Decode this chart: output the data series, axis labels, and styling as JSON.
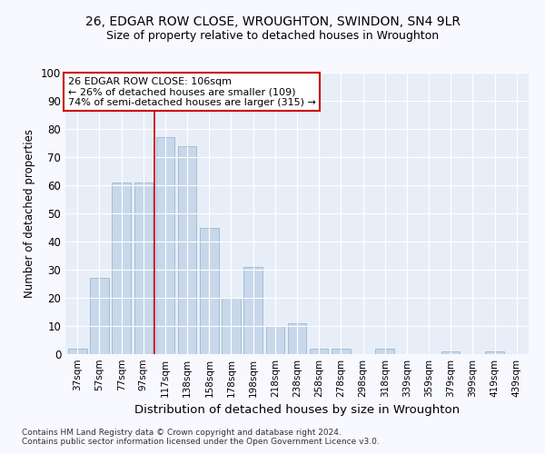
{
  "title": "26, EDGAR ROW CLOSE, WROUGHTON, SWINDON, SN4 9LR",
  "subtitle": "Size of property relative to detached houses in Wroughton",
  "xlabel": "Distribution of detached houses by size in Wroughton",
  "ylabel": "Number of detached properties",
  "bar_color": "#c8d8ea",
  "bar_edge_color": "#98b8d0",
  "fig_bg_color": "#f8f8ff",
  "ax_bg_color": "#e8eef8",
  "grid_color": "#ffffff",
  "bins": [
    "37sqm",
    "57sqm",
    "77sqm",
    "97sqm",
    "117sqm",
    "138sqm",
    "158sqm",
    "178sqm",
    "198sqm",
    "218sqm",
    "238sqm",
    "258sqm",
    "278sqm",
    "298sqm",
    "318sqm",
    "339sqm",
    "359sqm",
    "379sqm",
    "399sqm",
    "419sqm",
    "439sqm"
  ],
  "values": [
    2,
    27,
    61,
    61,
    77,
    74,
    45,
    20,
    31,
    10,
    11,
    2,
    2,
    0,
    2,
    0,
    0,
    1,
    0,
    1,
    0
  ],
  "ylim": [
    0,
    100
  ],
  "yticks": [
    0,
    10,
    20,
    30,
    40,
    50,
    60,
    70,
    80,
    90,
    100
  ],
  "red_line_x": 3.5,
  "annotation_text": "26 EDGAR ROW CLOSE: 106sqm\n← 26% of detached houses are smaller (109)\n74% of semi-detached houses are larger (315) →",
  "annotation_box_color": "#ffffff",
  "annotation_box_edge": "#cc0000",
  "footnote1": "Contains HM Land Registry data © Crown copyright and database right 2024.",
  "footnote2": "Contains public sector information licensed under the Open Government Licence v3.0."
}
